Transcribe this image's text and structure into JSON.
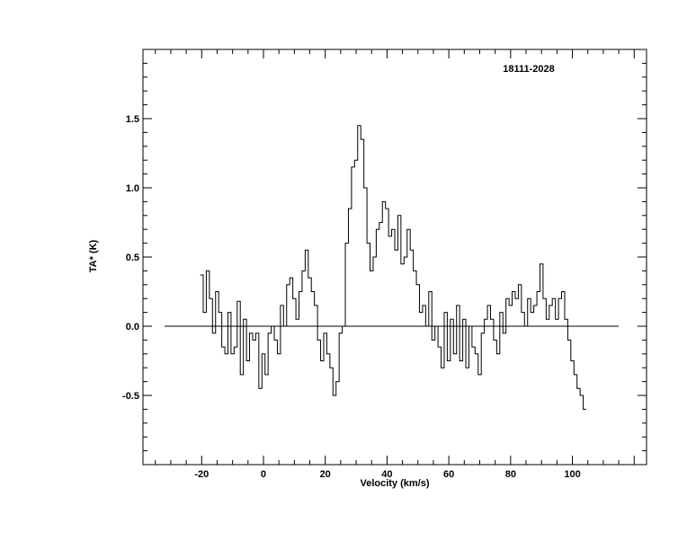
{
  "chart_data": {
    "type": "line",
    "style": "histogram-step",
    "title": "18111-2028",
    "xlabel": "Velocity (km/s)",
    "ylabel": "TA* (K)",
    "xlim": [
      -39,
      124
    ],
    "ylim": [
      -1.0,
      2.0
    ],
    "x_ticks": [
      -20,
      0,
      20,
      40,
      60,
      80,
      100
    ],
    "y_ticks": [
      -0.5,
      0.0,
      0.5,
      1.0,
      1.5
    ],
    "x_tick_labels": [
      "-20",
      "0",
      "20",
      "40",
      "60",
      "80",
      "100"
    ],
    "y_tick_labels": [
      "-0.5",
      "0.0",
      "0.5",
      "1.0",
      "1.5"
    ],
    "baseline": {
      "y": 0.0,
      "x_range": [
        -32,
        115
      ]
    },
    "grid": false,
    "series": [
      {
        "x": [
          -20,
          -19,
          -18,
          -17,
          -16,
          -15,
          -14,
          -13,
          -12,
          -11,
          -10,
          -9,
          -8,
          -7,
          -6,
          -5,
          -4,
          -3,
          -2,
          -1,
          0,
          1,
          2,
          3,
          4,
          5,
          6,
          7,
          8,
          9,
          10,
          11,
          12,
          13,
          14,
          15,
          16,
          17,
          18,
          19,
          20,
          21,
          22,
          23,
          24,
          25,
          26,
          27,
          28,
          29,
          30,
          31,
          32,
          33,
          34,
          35,
          36,
          37,
          38,
          39,
          40,
          41,
          42,
          43,
          44,
          45,
          46,
          47,
          48,
          49,
          50,
          51,
          52,
          53,
          54,
          55,
          56,
          57,
          58,
          59,
          60,
          61,
          62,
          63,
          64,
          65,
          66,
          67,
          68,
          69,
          70,
          71,
          72,
          73,
          74,
          75,
          76,
          77,
          78,
          79,
          80,
          81,
          82,
          83,
          84,
          85,
          86,
          87,
          88,
          89,
          90,
          91,
          92,
          93,
          94,
          95,
          96,
          97,
          98,
          99,
          100,
          101,
          102,
          103,
          104
        ],
        "values": [
          0.37,
          0.1,
          0.4,
          0.2,
          -0.05,
          0.25,
          0.1,
          -0.15,
          -0.2,
          0.1,
          -0.2,
          -0.15,
          0.18,
          -0.35,
          0.05,
          -0.25,
          -0.05,
          -0.1,
          -0.05,
          -0.45,
          -0.2,
          -0.35,
          -0.05,
          0.0,
          -0.1,
          -0.2,
          0.15,
          0.0,
          0.3,
          0.35,
          0.2,
          0.05,
          0.25,
          0.4,
          0.55,
          0.35,
          0.25,
          0.15,
          -0.1,
          -0.25,
          -0.05,
          -0.2,
          -0.3,
          -0.5,
          -0.4,
          -0.05,
          0.0,
          0.6,
          0.85,
          1.15,
          1.2,
          1.45,
          1.35,
          1.0,
          0.6,
          0.4,
          0.5,
          0.7,
          0.75,
          0.9,
          0.85,
          0.65,
          0.7,
          0.55,
          0.8,
          0.45,
          0.5,
          0.7,
          0.55,
          0.4,
          0.3,
          0.1,
          0.15,
          0.0,
          0.25,
          -0.1,
          0.0,
          -0.15,
          -0.3,
          0.1,
          -0.25,
          0.05,
          -0.2,
          0.15,
          -0.25,
          0.05,
          -0.3,
          0.0,
          -0.15,
          -0.2,
          -0.35,
          -0.05,
          0.05,
          0.15,
          0.05,
          -0.1,
          -0.2,
          0.1,
          -0.05,
          0.2,
          0.15,
          0.25,
          0.2,
          0.3,
          0.1,
          0.0,
          0.2,
          0.1,
          0.15,
          0.25,
          0.45,
          0.2,
          0.05,
          0.15,
          0.2,
          0.05,
          0.2,
          0.25,
          0.05,
          -0.1,
          -0.25,
          -0.35,
          -0.45,
          -0.5,
          -0.6
        ]
      }
    ]
  }
}
